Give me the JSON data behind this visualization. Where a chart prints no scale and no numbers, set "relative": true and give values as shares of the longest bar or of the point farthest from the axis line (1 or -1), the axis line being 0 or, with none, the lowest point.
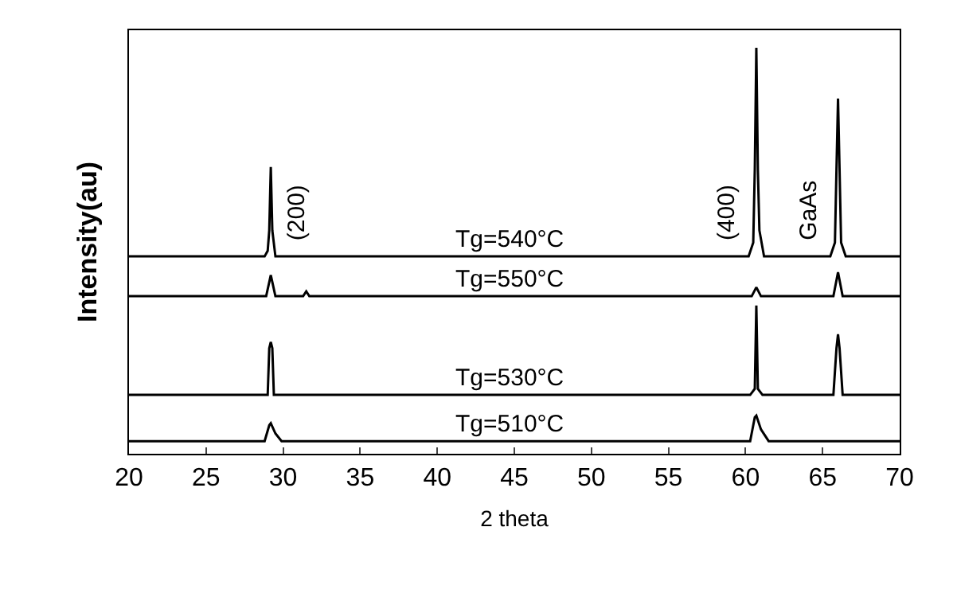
{
  "chart_data": {
    "type": "line",
    "relative": true,
    "xlabel": "2 theta",
    "ylabel": "Intensity(au)",
    "xlim": [
      20,
      70
    ],
    "xticks": [
      20,
      25,
      30,
      35,
      40,
      45,
      50,
      55,
      60,
      65,
      70
    ],
    "tick_labels": "x",
    "grid": false,
    "legend": false,
    "marker": "none",
    "series": [
      {
        "name": "Tg=540°C",
        "color": "#000000",
        "x": [
          20,
          28.8,
          29.0,
          29.1,
          29.2,
          29.3,
          29.5,
          60.2,
          60.5,
          60.6,
          60.7,
          60.8,
          60.9,
          61.2,
          65.5,
          65.8,
          65.9,
          66.0,
          66.1,
          66.2,
          66.5,
          70
        ],
        "values": [
          0.486,
          0.486,
          0.5,
          0.55,
          0.706,
          0.55,
          0.486,
          0.486,
          0.52,
          0.7,
          1.0,
          0.7,
          0.55,
          0.486,
          0.486,
          0.52,
          0.7,
          0.875,
          0.7,
          0.52,
          0.486,
          0.486
        ]
      },
      {
        "name": "Tg=550°C",
        "color": "#000000",
        "x": [
          20,
          28.9,
          29.2,
          29.5,
          31.3,
          31.5,
          31.7,
          60.4,
          60.7,
          61.0,
          65.7,
          66.0,
          66.3,
          70
        ],
        "values": [
          0.388,
          0.388,
          0.44,
          0.388,
          0.388,
          0.4,
          0.388,
          0.388,
          0.41,
          0.388,
          0.388,
          0.447,
          0.388,
          0.388
        ]
      },
      {
        "name": "Tg=530°C",
        "color": "#000000",
        "x": [
          20,
          29.0,
          29.1,
          29.2,
          29.3,
          29.4,
          60.3,
          60.6,
          60.7,
          60.8,
          61.1,
          65.7,
          65.9,
          66.0,
          66.1,
          66.3,
          70
        ],
        "values": [
          0.145,
          0.145,
          0.26,
          0.275,
          0.26,
          0.145,
          0.145,
          0.16,
          0.365,
          0.16,
          0.145,
          0.145,
          0.26,
          0.294,
          0.26,
          0.145,
          0.145
        ]
      },
      {
        "name": "Tg=510°C",
        "color": "#000000",
        "x": [
          20,
          28.8,
          29.1,
          29.2,
          29.5,
          29.9,
          60.3,
          60.6,
          60.7,
          61.0,
          61.5,
          70
        ],
        "values": [
          0.031,
          0.031,
          0.07,
          0.075,
          0.05,
          0.031,
          0.031,
          0.09,
          0.094,
          0.06,
          0.031,
          0.031
        ]
      }
    ],
    "annotations": [
      {
        "text": "(200)",
        "x": 29.2,
        "y": 0.486
      },
      {
        "text": "(400)",
        "x": 60.7,
        "y": 0.486
      },
      {
        "text": "GaAs",
        "x": 66.0,
        "y": 0.486
      }
    ]
  }
}
